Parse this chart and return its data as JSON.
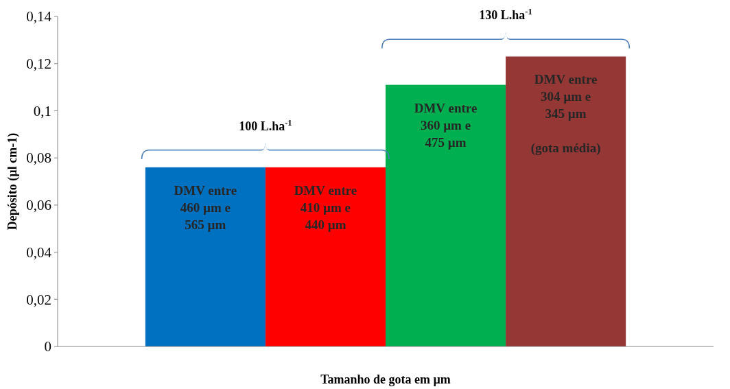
{
  "chart_data": {
    "type": "bar",
    "xlabel": "Tamanho de gota em µm",
    "ylabel": "Depósito (µl cm-1)",
    "categories": [
      null,
      null,
      null,
      null
    ],
    "values": [
      0.076,
      0.076,
      0.111,
      0.123
    ],
    "colors": [
      "#0070c0",
      "#ff0000",
      "#00b050",
      "#953735"
    ],
    "ylim": [
      0,
      0.14
    ],
    "yticks": [
      0,
      {
        "value": 0.02,
        "label": "0,02"
      },
      {
        "value": 0.04,
        "label": "0,04"
      },
      {
        "value": 0.06,
        "label": "0,06"
      },
      {
        "value": 0.08,
        "label": "0,08"
      },
      {
        "value": 0.1,
        "label": "0,1"
      },
      {
        "value": 0.12,
        "label": "0,12"
      },
      {
        "value": 0.14,
        "label": "0,14"
      }
    ],
    "annotations": [
      "DMV entre\n460 µm e\n565 µm",
      "DMV entre\n410 µm e\n440 µm",
      "DMV entre\n360 µm e\n475 µm",
      "DMV entre\n304 µm e\n345 µm\n\n(gota média)",
      "100 L.ha$^{-1}$",
      "130 L.ha$^{-1}$"
    ]
  }
}
